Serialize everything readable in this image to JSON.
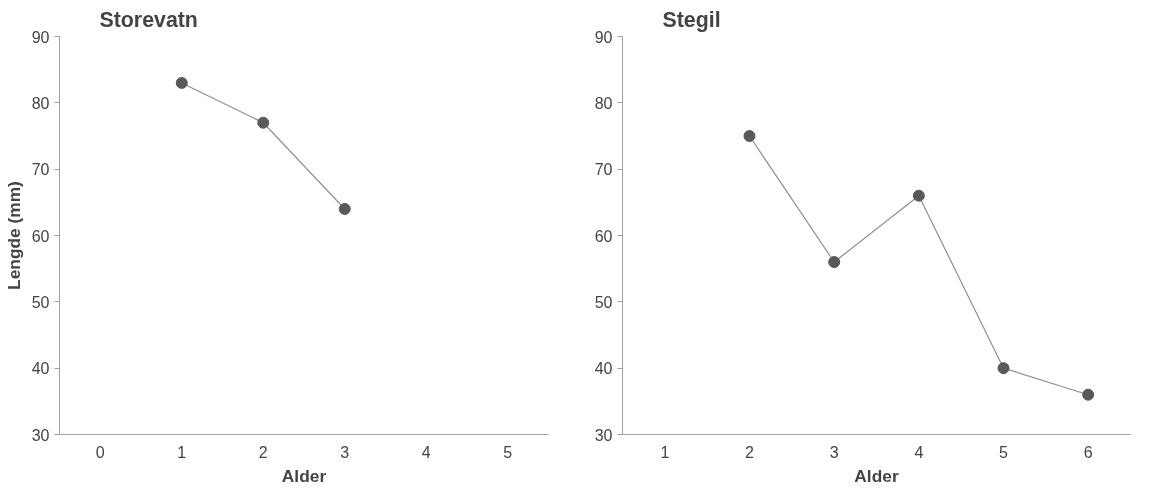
{
  "chart_data": [
    {
      "type": "line",
      "title": "Storevatn",
      "xlabel": "Alder",
      "ylabel": "Lengde (mm)",
      "categories": [
        "0",
        "1",
        "2",
        "3",
        "4",
        "5"
      ],
      "series": [
        {
          "color": "#595959",
          "values": [
            null,
            83,
            77,
            64,
            null,
            null
          ]
        }
      ],
      "ylim": [
        30,
        90
      ],
      "yticks": [
        30,
        40,
        50,
        60,
        70,
        80,
        90
      ],
      "marker": "circle",
      "grid": false
    },
    {
      "type": "line",
      "title": "Stegil",
      "xlabel": "Alder",
      "categories": [
        "1",
        "2",
        "3",
        "4",
        "5",
        "6"
      ],
      "series": [
        {
          "color": "#595959",
          "values": [
            null,
            75,
            56,
            66,
            40,
            36
          ]
        }
      ],
      "ylim": [
        30,
        90
      ],
      "yticks": [
        30,
        40,
        50,
        60,
        70,
        80,
        90
      ],
      "marker": "circle",
      "grid": false
    }
  ]
}
